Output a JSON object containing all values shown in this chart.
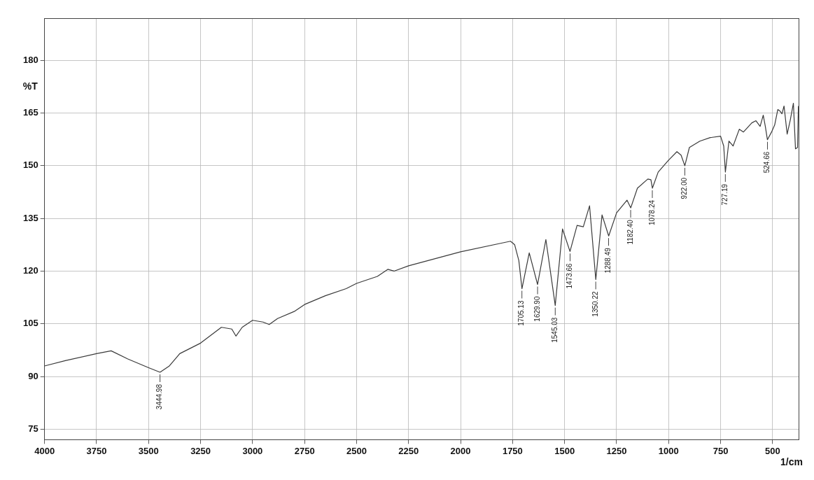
{
  "chart_data": {
    "type": "line",
    "ylabel": "%T",
    "xlabel": "1/cm",
    "xlim": [
      4000,
      375
    ],
    "xticks": [
      4000,
      3750,
      3500,
      3250,
      3000,
      2750,
      2500,
      2250,
      2000,
      1750,
      1500,
      1250,
      1000,
      750,
      500
    ],
    "ylim": [
      72,
      192
    ],
    "yticks": [
      75,
      90,
      105,
      120,
      135,
      150,
      165,
      180
    ],
    "grid": true,
    "marker": "none",
    "series": [
      {
        "color": "#3a3a3a",
        "x": [
          4000,
          3900,
          3750,
          3680,
          3600,
          3500,
          3445,
          3400,
          3350,
          3250,
          3150,
          3100,
          3080,
          3050,
          3000,
          2950,
          2920,
          2880,
          2800,
          2750,
          2650,
          2550,
          2500,
          2400,
          2350,
          2320,
          2250,
          2000,
          1800,
          1760,
          1740,
          1720,
          1705,
          1670,
          1630,
          1590,
          1545,
          1510,
          1474,
          1440,
          1410,
          1380,
          1350,
          1320,
          1288,
          1250,
          1200,
          1182,
          1150,
          1100,
          1085,
          1078,
          1050,
          1000,
          960,
          940,
          922,
          900,
          850,
          800,
          750,
          735,
          727,
          710,
          690,
          660,
          640,
          600,
          580,
          560,
          545,
          535,
          525,
          505,
          490,
          475,
          465,
          455,
          445,
          430,
          415,
          400,
          390,
          380,
          376
        ],
        "values": [
          93,
          94.5,
          96.5,
          97.3,
          95,
          92.5,
          91.2,
          93,
          96.5,
          99.5,
          104,
          103.5,
          101.5,
          104,
          106,
          105.5,
          104.8,
          106.5,
          108.5,
          110.5,
          113,
          115,
          116.5,
          118.5,
          120.5,
          120,
          121.5,
          125.5,
          128,
          128.5,
          127.5,
          123,
          115,
          125.2,
          116.2,
          129,
          110.2,
          132,
          125.6,
          133,
          132.6,
          138.6,
          117.6,
          136,
          130,
          136.6,
          140.2,
          138,
          143.6,
          146.2,
          146,
          143.6,
          148.2,
          151.6,
          154,
          153,
          150,
          155.2,
          157,
          158,
          158.4,
          155.6,
          148.2,
          157,
          155.6,
          160.4,
          159.6,
          162.2,
          162.8,
          161.2,
          164.4,
          161.2,
          157.4,
          159.6,
          161.6,
          166,
          165.6,
          164.8,
          167,
          159,
          163,
          167.8,
          154.8,
          155.2,
          167
        ]
      }
    ],
    "annotations": [
      {
        "text": "3444.98",
        "x": 3444.98,
        "y": 91.2
      },
      {
        "text": "1705.13",
        "x": 1705.13,
        "y": 115
      },
      {
        "text": "1629.90",
        "x": 1629.9,
        "y": 116.2
      },
      {
        "text": "1545.03",
        "x": 1545.03,
        "y": 110.2
      },
      {
        "text": "1473.66",
        "x": 1473.66,
        "y": 125.6
      },
      {
        "text": "1350.22",
        "x": 1350.22,
        "y": 117.6
      },
      {
        "text": "1288.49",
        "x": 1288.49,
        "y": 130
      },
      {
        "text": "1182.40",
        "x": 1182.4,
        "y": 138
      },
      {
        "text": "1078.24",
        "x": 1078.24,
        "y": 143.6
      },
      {
        "text": "922.00",
        "x": 922,
        "y": 150
      },
      {
        "text": "727.19",
        "x": 727.19,
        "y": 148.2
      },
      {
        "text": "524.66",
        "x": 524.66,
        "y": 157.4
      }
    ]
  }
}
